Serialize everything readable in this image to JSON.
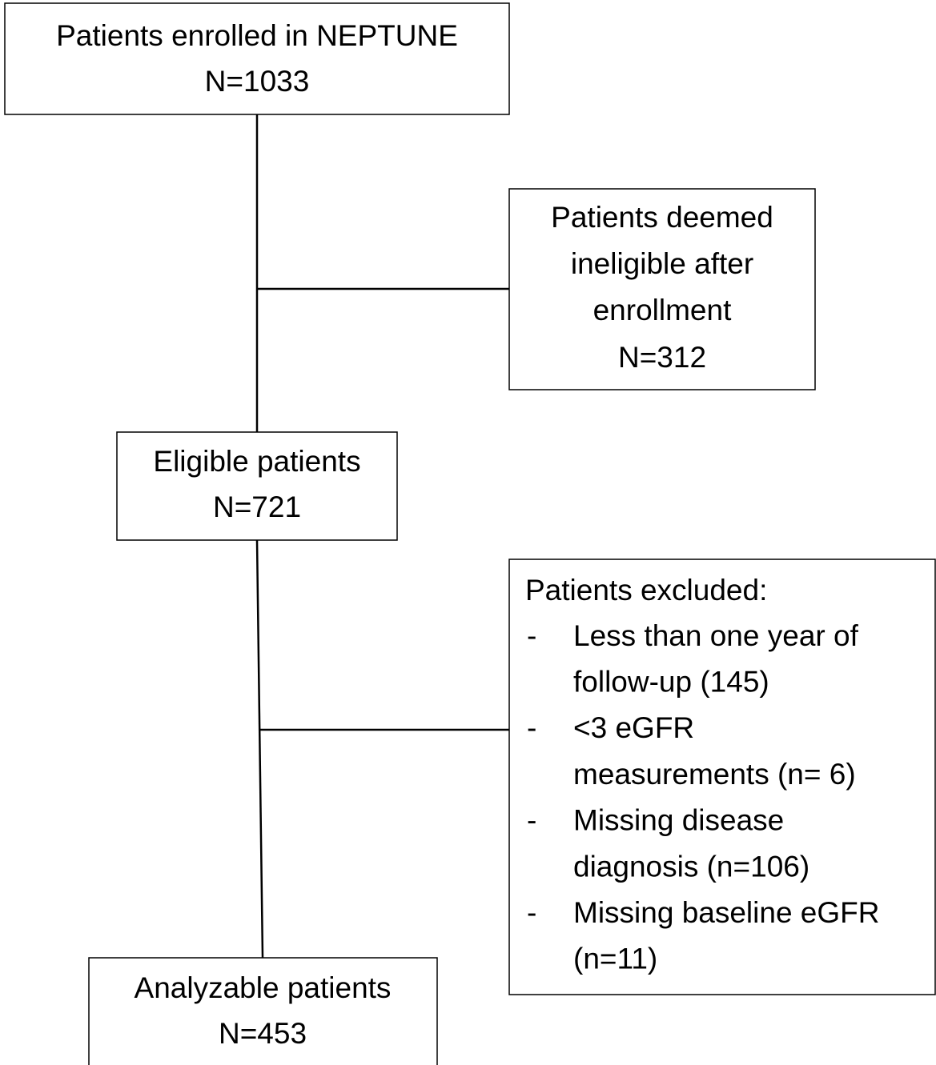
{
  "nodes": [
    {
      "lines": [
        "Patients enrolled in NEPTUNE",
        "N=1033"
      ]
    },
    {
      "lines": [
        "Patients deemed",
        "ineligible after",
        "enrollment",
        "N=312"
      ]
    },
    {
      "lines": [
        "Eligible patients",
        "N=721"
      ]
    },
    {
      "title": "Patients excluded:",
      "items": [
        {
          "bullet": "-",
          "lines": [
            "Less than one year of",
            "follow-up (145)"
          ]
        },
        {
          "bullet": "-",
          "lines": [
            "<3 eGFR",
            "measurements (n= 6)"
          ]
        },
        {
          "bullet": "-",
          "lines": [
            "Missing disease",
            "diagnosis (n=106)"
          ]
        },
        {
          "bullet": "-",
          "lines": [
            "Missing baseline eGFR",
            "(n=11)"
          ]
        }
      ]
    },
    {
      "lines": [
        "Analyzable patients",
        "N=453"
      ]
    }
  ]
}
